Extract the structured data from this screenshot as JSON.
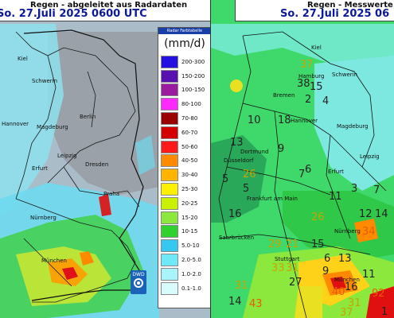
{
  "left_map": {
    "title": "Regen - abgeleitet aus Radardaten",
    "datetime": "So. 27.Juli 2025 0600 UTC",
    "cities": [
      "Kiel",
      "Schwerin",
      "Hannover",
      "Magdeburg",
      "Berlin",
      "Erfurt",
      "Dresden",
      "Leipzig",
      "Praha",
      "Nürnberg",
      "München"
    ],
    "logo": "DWD",
    "legend": {
      "tab": "Radar Farbtabelle",
      "unit": "(mm/d)",
      "items": [
        {
          "label": "200-300",
          "color": "#2410e0"
        },
        {
          "label": "150-200",
          "color": "#5a0fb0"
        },
        {
          "label": "100-150",
          "color": "#9a1aa0"
        },
        {
          "label": "80-100",
          "color": "#ff28ff"
        },
        {
          "label": "70-80",
          "color": "#9b0000"
        },
        {
          "label": "60-70",
          "color": "#d40000"
        },
        {
          "label": "50-60",
          "color": "#ff1a1a"
        },
        {
          "label": "40-50",
          "color": "#ff8a00"
        },
        {
          "label": "30-40",
          "color": "#ffb400"
        },
        {
          "label": "25-30",
          "color": "#fff000"
        },
        {
          "label": "20-25",
          "color": "#c8f000"
        },
        {
          "label": "15-20",
          "color": "#8ce83c"
        },
        {
          "label": "10-15",
          "color": "#2ed12e"
        },
        {
          "label": "5.0-10",
          "color": "#35c8f0"
        },
        {
          "label": "2.0-5.0",
          "color": "#6fe8f8"
        },
        {
          "label": "1.0-2.0",
          "color": "#a8f4fa"
        },
        {
          "label": "0.1-1.0",
          "color": "#d8fcfc"
        }
      ]
    }
  },
  "right_map": {
    "title": "Regen - Messwerte",
    "datetime": "So. 27.Juli 2025 06",
    "cities": [
      "Kiel",
      "Hamburg",
      "Schwerin",
      "Bremen",
      "Hannover",
      "Magdeburg",
      "Dortmund",
      "Düsseldorf",
      "Erfurt",
      "Leipzig",
      "Frankfurt am Main",
      "Saarbrücken",
      "Nürnberg",
      "Stuttgart",
      "München"
    ],
    "values": [
      "37",
      "38",
      "15",
      "2",
      "4",
      "10",
      "18",
      "13",
      "9",
      "6",
      "26",
      "5",
      "5",
      "7",
      "11",
      "3",
      "16",
      "26",
      "12",
      "14",
      "7",
      "34",
      "29",
      "21",
      "15",
      "13",
      "33",
      "31",
      "6",
      "31",
      "27",
      "16",
      "9",
      "11",
      "40",
      "31",
      "14",
      "43",
      "37",
      "92",
      "1"
    ]
  }
}
